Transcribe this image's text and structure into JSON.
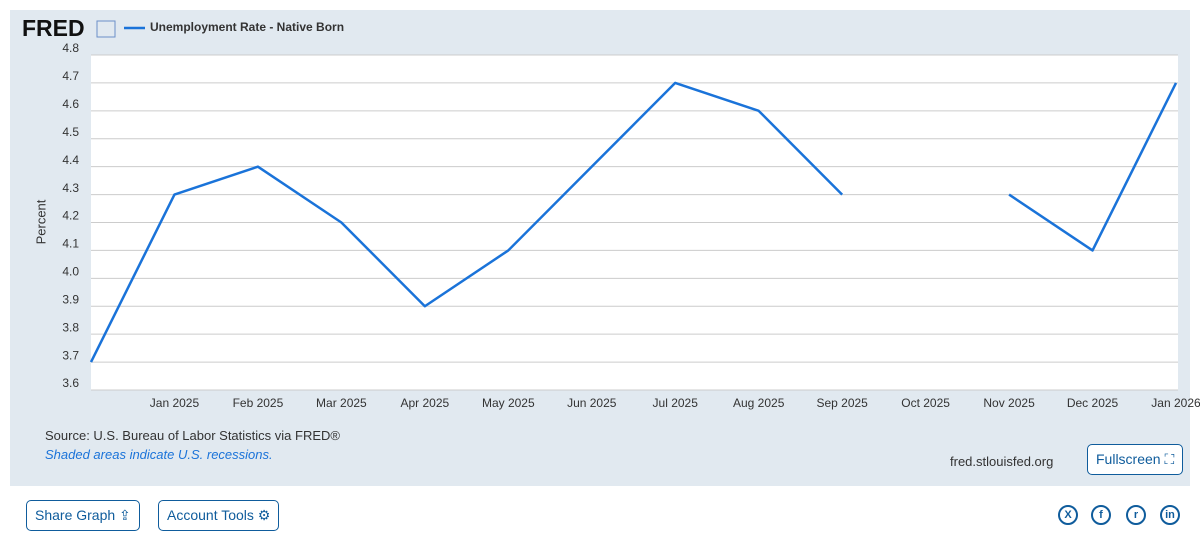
{
  "logo": "FRED",
  "chart_data": {
    "type": "line",
    "y_label": "Percent",
    "categories": [
      null,
      "Jan 2025",
      "Feb 2025",
      "Mar 2025",
      "Apr 2025",
      "May 2025",
      "Jun 2025",
      "Jul 2025",
      "Aug 2025",
      "Sep 2025",
      "Oct 2025",
      "Nov 2025",
      "Dec 2025",
      "Jan 2026"
    ],
    "series": [
      {
        "name": "Unemployment Rate - Native Born",
        "color": "#1a73d9",
        "values": [
          3.7,
          4.3,
          4.4,
          4.2,
          3.9,
          4.1,
          4.4,
          4.7,
          4.6,
          4.3,
          null,
          4.3,
          4.1,
          4.7
        ]
      }
    ],
    "ylim": [
      3.6,
      4.8
    ],
    "yticks": [
      3.6,
      3.7,
      3.8,
      3.9,
      {
        "value": 4,
        "label": "4.0"
      },
      4.1,
      4.2,
      4.3,
      4.4,
      4.5,
      4.6,
      4.7,
      4.8
    ],
    "grid": true
  },
  "source": "Source: U.S. Bureau of Labor Statistics via FRED®",
  "note": "Shaded areas indicate U.S. recessions.",
  "site": "fred.stlouisfed.org",
  "buttons": {
    "fullscreen": "Fullscreen",
    "share": "Share Graph",
    "account": "Account Tools"
  }
}
